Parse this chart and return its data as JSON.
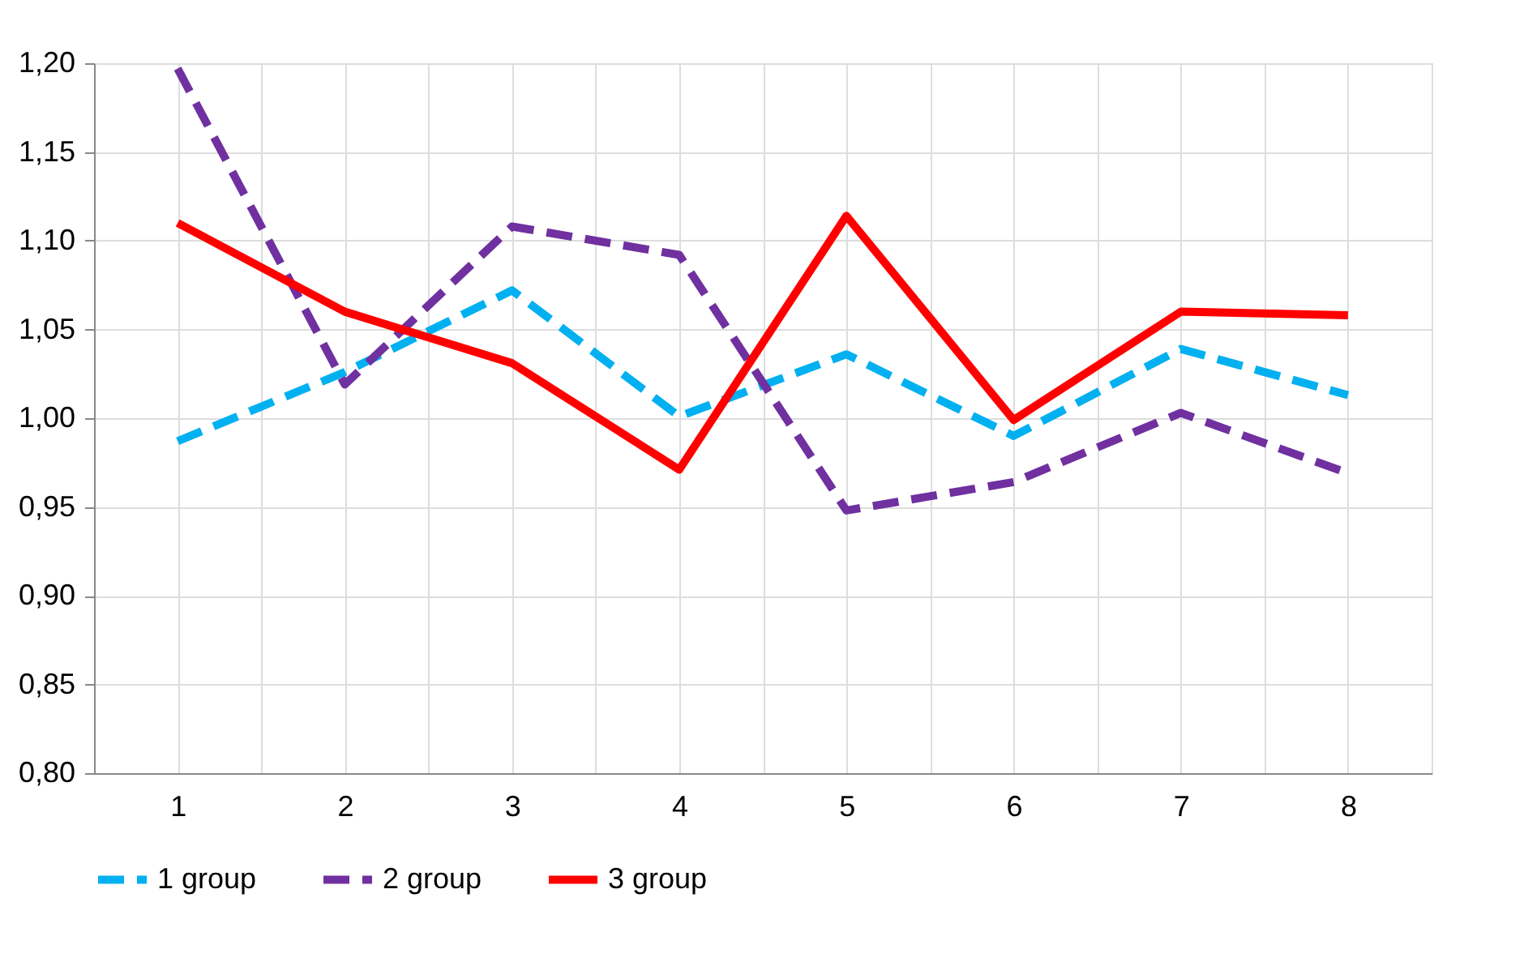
{
  "chart_data": {
    "type": "line",
    "x": [
      1,
      2,
      3,
      4,
      5,
      6,
      7,
      8
    ],
    "series": [
      {
        "name": "1 group",
        "color": "#00b0f0",
        "line_style": "dashed",
        "values": [
          0.987,
          1.026,
          1.072,
          1.001,
          1.036,
          0.99,
          1.039,
          1.013
        ]
      },
      {
        "name": "2 group",
        "color": "#7030a0",
        "line_style": "dashed",
        "values": [
          1.197,
          1.019,
          1.108,
          1.092,
          0.948,
          0.964,
          1.003,
          0.969
        ]
      },
      {
        "name": "3 group",
        "color": "#ff0000",
        "line_style": "solid",
        "values": [
          1.11,
          1.06,
          1.031,
          0.971,
          1.114,
          0.999,
          1.06,
          1.058
        ]
      }
    ],
    "xlim": [
      0.5,
      8.5
    ],
    "xticks": [
      {
        "value": 0.5,
        "label": null
      },
      1,
      {
        "value": 1.5,
        "label": null
      },
      2,
      {
        "value": 2.5,
        "label": null
      },
      3,
      {
        "value": 3.5,
        "label": null
      },
      4,
      {
        "value": 4.5,
        "label": null
      },
      5,
      {
        "value": 5.5,
        "label": null
      },
      6,
      {
        "value": 6.5,
        "label": null
      },
      7,
      {
        "value": 7.5,
        "label": null
      },
      8,
      {
        "value": 8.5,
        "label": null
      }
    ],
    "ylim": [
      0.8,
      1.2
    ],
    "yticks": [
      {
        "value": 0.8,
        "label": "0,80"
      },
      {
        "value": 0.85,
        "label": "0,85"
      },
      {
        "value": 0.9,
        "label": "0,90"
      },
      {
        "value": 0.95,
        "label": "0,95"
      },
      {
        "value": 1.0,
        "label": "1,00"
      },
      {
        "value": 1.05,
        "label": "1,05"
      },
      {
        "value": 1.1,
        "label": "1,10"
      },
      {
        "value": 1.15,
        "label": "1,15"
      },
      {
        "value": 1.2,
        "label": "1,20"
      }
    ],
    "grid": true,
    "legend": "bottom",
    "marker": "none"
  }
}
